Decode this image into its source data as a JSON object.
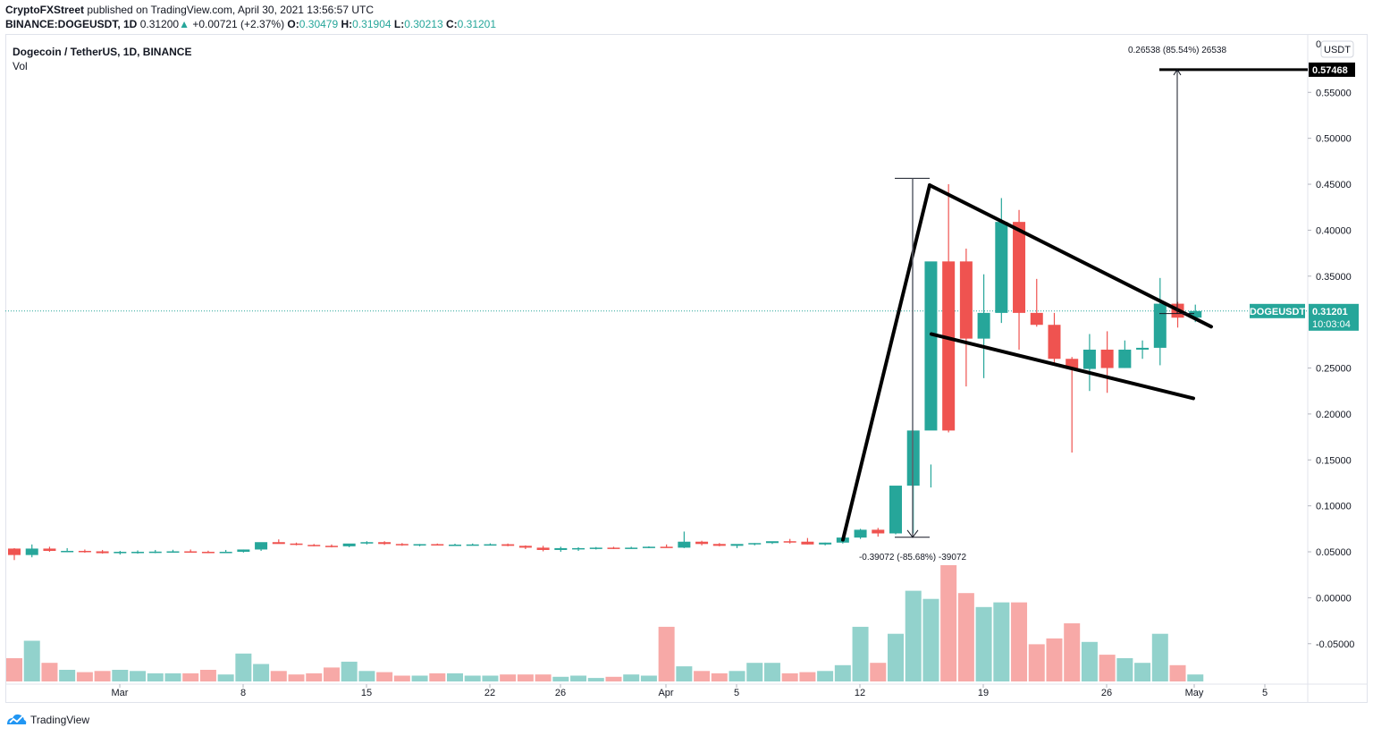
{
  "header": {
    "author": "CryptoFXStreet",
    "published": "published on TradingView.com, April 30, 2021 13:56:57 UTC",
    "symbol": "BINANCE:DOGEUSDT, 1D",
    "last": "0.31200",
    "change": "+0.00721 (+2.37%)",
    "open_label": "O:",
    "open": "0.30479",
    "high_label": "H:",
    "high": "0.31904",
    "low_label": "L:",
    "low": "0.30213",
    "close_label": "C:",
    "close": "0.31201"
  },
  "legend": {
    "title": "Dogecoin / TetherUS, 1D, BINANCE",
    "indicator": "Vol"
  },
  "price_axis": {
    "currency": "USDT",
    "top_label": "0",
    "ticks": [
      "0.55000",
      "0.50000",
      "0.45000",
      "0.40000",
      "0.35000",
      "0.25000",
      "0.20000",
      "0.15000",
      "0.10000",
      "0.05000",
      "0.00000",
      "-0.05000"
    ],
    "target_label": "0.57468",
    "current_label": "0.31201",
    "countdown": "10:03:04",
    "symbol_badge": "DOGEUSDT"
  },
  "time_axis": {
    "labels": [
      "Mar",
      "8",
      "15",
      "22",
      "26",
      "Apr",
      "5",
      "12",
      "19",
      "26",
      "May",
      "5"
    ]
  },
  "measurements": {
    "down": "-0.39072 (-85.68%) -39072",
    "up": "0.26538 (85.54%) 26538"
  },
  "colors": {
    "up": "#26a69a",
    "down": "#ef5350",
    "vol_up": "#92d2cc",
    "vol_down": "#f7a9a7",
    "grid": "#e0e3eb",
    "drawing": "#000000"
  },
  "footer": {
    "brand": "TradingView"
  },
  "chart_data": {
    "type": "candlestick",
    "title": "Dogecoin / TetherUS, 1D, BINANCE",
    "xlabel": "",
    "ylabel": "USDT",
    "ylim": [
      -0.09,
      0.6
    ],
    "x": [
      "Feb 22",
      "Feb 23",
      "Feb 24",
      "Feb 25",
      "Feb 26",
      "Feb 27",
      "Feb 28",
      "Mar 1",
      "Mar 2",
      "Mar 3",
      "Mar 4",
      "Mar 5",
      "Mar 6",
      "Mar 7",
      "Mar 8",
      "Mar 9",
      "Mar 10",
      "Mar 11",
      "Mar 12",
      "Mar 13",
      "Mar 14",
      "Mar 15",
      "Mar 16",
      "Mar 17",
      "Mar 18",
      "Mar 19",
      "Mar 20",
      "Mar 21",
      "Mar 22",
      "Mar 23",
      "Mar 24",
      "Mar 25",
      "Mar 26",
      "Mar 27",
      "Mar 28",
      "Mar 29",
      "Mar 30",
      "Mar 31",
      "Apr 1",
      "Apr 2",
      "Apr 3",
      "Apr 4",
      "Apr 5",
      "Apr 6",
      "Apr 7",
      "Apr 8",
      "Apr 9",
      "Apr 10",
      "Apr 11",
      "Apr 12",
      "Apr 13",
      "Apr 14",
      "Apr 15",
      "Apr 16",
      "Apr 17",
      "Apr 18",
      "Apr 19",
      "Apr 20",
      "Apr 21",
      "Apr 22",
      "Apr 23",
      "Apr 24",
      "Apr 25",
      "Apr 26",
      "Apr 27",
      "Apr 28",
      "Apr 29",
      "Apr 30"
    ],
    "series": [
      {
        "name": "open",
        "values": [
          0.0535,
          0.0465,
          0.0535,
          0.051,
          0.051,
          0.0505,
          0.0485,
          0.0495,
          0.05,
          0.0502,
          0.0505,
          0.05,
          0.0495,
          0.05,
          0.0525,
          0.0605,
          0.059,
          0.0575,
          0.0565,
          0.056,
          0.059,
          0.0605,
          0.0585,
          0.0575,
          0.0583,
          0.0575,
          0.0578,
          0.058,
          0.0582,
          0.0565,
          0.0545,
          0.052,
          0.054,
          0.054,
          0.0545,
          0.054,
          0.0545,
          0.0555,
          0.0545,
          0.061,
          0.0585,
          0.0565,
          0.0585,
          0.0595,
          0.0615,
          0.061,
          0.058,
          0.06,
          0.0655,
          0.074,
          0.07,
          0.122,
          0.182,
          0.366,
          0.366,
          0.282,
          0.31,
          0.409,
          0.31,
          0.297,
          0.26,
          0.249,
          0.27,
          0.25,
          0.27,
          0.272,
          0.32,
          0.3048
        ]
      },
      {
        "name": "high",
        "values": [
          0.054,
          0.058,
          0.0555,
          0.054,
          0.0525,
          0.052,
          0.051,
          0.0515,
          0.052,
          0.0522,
          0.0525,
          0.0512,
          0.052,
          0.0525,
          0.0545,
          0.0635,
          0.06,
          0.0585,
          0.058,
          0.0575,
          0.0615,
          0.0615,
          0.0595,
          0.0585,
          0.059,
          0.0588,
          0.059,
          0.0592,
          0.059,
          0.057,
          0.0565,
          0.0555,
          0.055,
          0.0552,
          0.0555,
          0.0555,
          0.056,
          0.058,
          0.072,
          0.062,
          0.0595,
          0.058,
          0.0595,
          0.061,
          0.064,
          0.065,
          0.06,
          0.062,
          0.075,
          0.076,
          0.075,
          0.123,
          0.145,
          0.45,
          0.38,
          0.352,
          0.435,
          0.422,
          0.347,
          0.31,
          0.262,
          0.287,
          0.29,
          0.28,
          0.28,
          0.348,
          0.322,
          0.319
        ]
      },
      {
        "name": "low",
        "values": [
          0.041,
          0.044,
          0.05,
          0.0495,
          0.049,
          0.048,
          0.047,
          0.048,
          0.0485,
          0.049,
          0.0495,
          0.0485,
          0.0488,
          0.0492,
          0.051,
          0.059,
          0.057,
          0.056,
          0.0548,
          0.055,
          0.058,
          0.0575,
          0.0565,
          0.056,
          0.057,
          0.0565,
          0.0568,
          0.0568,
          0.056,
          0.053,
          0.0505,
          0.05,
          0.051,
          0.0525,
          0.053,
          0.0535,
          0.054,
          0.0545,
          0.054,
          0.057,
          0.056,
          0.054,
          0.057,
          0.0585,
          0.059,
          0.058,
          0.057,
          0.059,
          0.064,
          0.0665,
          0.069,
          0.07,
          0.12,
          0.18,
          0.23,
          0.239,
          0.299,
          0.27,
          0.295,
          0.255,
          0.158,
          0.225,
          0.223,
          0.25,
          0.26,
          0.253,
          0.294,
          0.3
        ]
      },
      {
        "name": "close",
        "values": [
          0.0465,
          0.0535,
          0.051,
          0.051,
          0.0505,
          0.0485,
          0.05,
          0.05,
          0.0502,
          0.0505,
          0.05,
          0.0495,
          0.05,
          0.0525,
          0.0605,
          0.0585,
          0.0575,
          0.0565,
          0.056,
          0.059,
          0.0605,
          0.0585,
          0.0575,
          0.0583,
          0.0575,
          0.0578,
          0.058,
          0.0582,
          0.0565,
          0.0545,
          0.052,
          0.054,
          0.054,
          0.0545,
          0.054,
          0.0545,
          0.0555,
          0.0545,
          0.061,
          0.0585,
          0.0565,
          0.0585,
          0.0595,
          0.0615,
          0.061,
          0.058,
          0.06,
          0.0655,
          0.074,
          0.07,
          0.122,
          0.182,
          0.366,
          0.182,
          0.282,
          0.31,
          0.409,
          0.31,
          0.297,
          0.26,
          0.249,
          0.27,
          0.25,
          0.27,
          0.272,
          0.32,
          0.3048,
          0.312
        ]
      },
      {
        "name": "volume_rel",
        "values": [
          0.2,
          0.35,
          0.16,
          0.1,
          0.08,
          0.09,
          0.1,
          0.09,
          0.07,
          0.07,
          0.07,
          0.1,
          0.06,
          0.24,
          0.15,
          0.09,
          0.06,
          0.07,
          0.12,
          0.17,
          0.09,
          0.08,
          0.05,
          0.05,
          0.07,
          0.07,
          0.05,
          0.05,
          0.06,
          0.06,
          0.06,
          0.04,
          0.05,
          0.03,
          0.04,
          0.06,
          0.05,
          0.47,
          0.13,
          0.09,
          0.07,
          0.09,
          0.16,
          0.16,
          0.07,
          0.08,
          0.09,
          0.14,
          0.47,
          0.16,
          0.41,
          0.78,
          0.71,
          1.0,
          0.76,
          0.64,
          0.68,
          0.68,
          0.32,
          0.37,
          0.5,
          0.34,
          0.23,
          0.2,
          0.16,
          0.41,
          0.14,
          0.06
        ]
      }
    ],
    "annotations": [
      {
        "type": "measure",
        "text": "-0.39072 (-85.68%) -39072",
        "from": 0.45653,
        "to": 0.06581
      },
      {
        "type": "measure",
        "text": "0.26538 (85.54%) 26538",
        "from": 0.3093,
        "to": 0.57468
      },
      {
        "type": "flagpole",
        "from": {
          "x": "Apr 11",
          "y": 0.066
        },
        "to": {
          "x": "Apr 16",
          "y": 0.449
        }
      },
      {
        "type": "trendline",
        "label": "flag upper",
        "from": {
          "x": "Apr 16",
          "y": 0.449
        },
        "to": {
          "x": "May 1",
          "y": 0.295
        }
      },
      {
        "type": "trendline",
        "label": "flag lower",
        "from": {
          "x": "Apr 16",
          "y": 0.287
        },
        "to": {
          "x": "May 1",
          "y": 0.217
        }
      },
      {
        "type": "hline",
        "label": "target",
        "y": 0.57468
      }
    ]
  }
}
